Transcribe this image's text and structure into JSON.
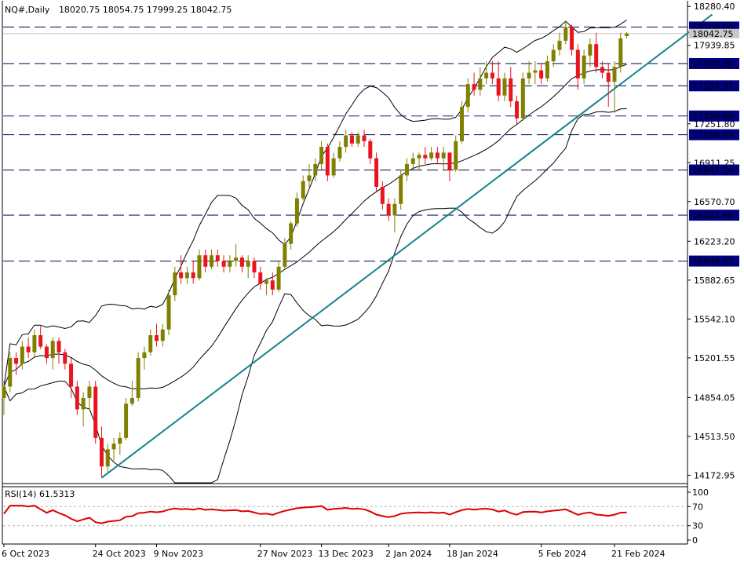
{
  "header": {
    "symbol": "NQ#,Daily",
    "ohlc": "18020.75 18054.75 17999.25 18042.75"
  },
  "rsi_panel": {
    "label": "RSI(14) 61.5313",
    "ticks": [
      "100",
      "70",
      "30",
      "0"
    ]
  },
  "chart_data": {
    "type": "candlestick",
    "symbol": "NQ#",
    "timeframe": "Daily",
    "last_ohlc": {
      "open": 18020.75,
      "high": 18054.75,
      "low": 17999.25,
      "close": 18042.75
    },
    "y_axis_ticks": [
      "18280.40",
      "17939.85",
      "17251.80",
      "16911.25",
      "16570.70",
      "16223.20",
      "15882.65",
      "15542.10",
      "15201.55",
      "14854.05",
      "14513.50",
      "14172.95"
    ],
    "current_price_label": "18042.75",
    "ylim": [
      14100,
      18330
    ],
    "x_axis_labels": [
      "6 Oct 2023",
      "24 Oct 2023",
      "9 Nov 2023",
      "27 Nov 2023",
      "13 Dec 2023",
      "2 Jan 2024",
      "18 Jan 2024",
      "5 Feb 2024",
      "21 Feb 2024"
    ],
    "horizontal_levels": [
      {
        "label": "18100.00",
        "value": 18100.0
      },
      {
        "label": "17780.00",
        "value": 17780.0
      },
      {
        "label": "17584.97",
        "value": 17584.97
      },
      {
        "label": "17320.60",
        "value": 17320.6
      },
      {
        "label": "17156.63",
        "value": 17156.63
      },
      {
        "label": "16847.54",
        "value": 16847.54
      },
      {
        "label": "16451.60",
        "value": 16451.6
      },
      {
        "label": "16049.53",
        "value": 16049.53
      }
    ],
    "trendline": {
      "from": {
        "bar": 16,
        "price": 14150
      },
      "to": {
        "bar": 116,
        "price": 18210
      }
    },
    "candles": [
      [
        14850,
        15000,
        14700,
        14950
      ],
      [
        14950,
        15250,
        14900,
        15200
      ],
      [
        15200,
        15250,
        15050,
        15150
      ],
      [
        15150,
        15350,
        15100,
        15300
      ],
      [
        15300,
        15380,
        15200,
        15250
      ],
      [
        15250,
        15450,
        15200,
        15400
      ],
      [
        15400,
        15480,
        15280,
        15300
      ],
      [
        15300,
        15320,
        15150,
        15200
      ],
      [
        15200,
        15380,
        15100,
        15350
      ],
      [
        15350,
        15380,
        15150,
        15250
      ],
      [
        15250,
        15280,
        15100,
        15150
      ],
      [
        15150,
        15200,
        14850,
        14950
      ],
      [
        14950,
        15000,
        14700,
        14750
      ],
      [
        14750,
        14900,
        14600,
        14850
      ],
      [
        14850,
        15000,
        14750,
        14950
      ],
      [
        14950,
        15000,
        14450,
        14500
      ],
      [
        14500,
        14600,
        14150,
        14250
      ],
      [
        14250,
        14450,
        14200,
        14400
      ],
      [
        14400,
        14500,
        14300,
        14450
      ],
      [
        14450,
        14550,
        14350,
        14500
      ],
      [
        14500,
        14850,
        14480,
        14800
      ],
      [
        14800,
        15000,
        14780,
        14850
      ],
      [
        14850,
        15250,
        14820,
        15200
      ],
      [
        15200,
        15300,
        15100,
        15250
      ],
      [
        15250,
        15450,
        15220,
        15400
      ],
      [
        15400,
        15500,
        15300,
        15350
      ],
      [
        15350,
        15500,
        15300,
        15450
      ],
      [
        15450,
        15800,
        15400,
        15750
      ],
      [
        15750,
        16000,
        15700,
        15950
      ],
      [
        15950,
        16100,
        15850,
        15900
      ],
      [
        15900,
        16000,
        15850,
        15950
      ],
      [
        15950,
        16050,
        15850,
        15900
      ],
      [
        15900,
        16150,
        15880,
        16100
      ],
      [
        16100,
        16150,
        15950,
        16000
      ],
      [
        16000,
        16150,
        15980,
        16100
      ],
      [
        16100,
        16150,
        16000,
        16050
      ],
      [
        16050,
        16100,
        15950,
        16000
      ],
      [
        16000,
        16100,
        15950,
        16050
      ],
      [
        16050,
        16200,
        16000,
        16080
      ],
      [
        16080,
        16100,
        15950,
        16000
      ],
      [
        16000,
        16100,
        15900,
        16050
      ],
      [
        16050,
        16080,
        15900,
        15950
      ],
      [
        15950,
        16000,
        15800,
        15850
      ],
      [
        15850,
        15900,
        15750,
        15880
      ],
      [
        15880,
        15950,
        15750,
        15800
      ],
      [
        15800,
        16050,
        15780,
        16000
      ],
      [
        16000,
        16250,
        15980,
        16200
      ],
      [
        16200,
        16400,
        16150,
        16380
      ],
      [
        16380,
        16650,
        16350,
        16600
      ],
      [
        16600,
        16800,
        16580,
        16750
      ],
      [
        16750,
        16900,
        16700,
        16800
      ],
      [
        16800,
        16950,
        16750,
        16900
      ],
      [
        16900,
        17100,
        16850,
        17050
      ],
      [
        17050,
        17080,
        16750,
        16800
      ],
      [
        16800,
        17000,
        16780,
        16950
      ],
      [
        16950,
        17100,
        16920,
        17050
      ],
      [
        17050,
        17200,
        17000,
        17150
      ],
      [
        17150,
        17180,
        17050,
        17080
      ],
      [
        17080,
        17180,
        17050,
        17150
      ],
      [
        17150,
        17200,
        17050,
        17100
      ],
      [
        17100,
        17120,
        16900,
        16950
      ],
      [
        16950,
        17000,
        16650,
        16700
      ],
      [
        16700,
        16750,
        16500,
        16550
      ],
      [
        16550,
        16600,
        16400,
        16450
      ],
      [
        16450,
        16600,
        16300,
        16550
      ],
      [
        16550,
        16850,
        16500,
        16800
      ],
      [
        16800,
        16950,
        16750,
        16900
      ],
      [
        16900,
        17000,
        16850,
        16950
      ],
      [
        16950,
        17000,
        16850,
        16980
      ],
      [
        16980,
        17050,
        16900,
        16950
      ],
      [
        16950,
        17050,
        16930,
        17000
      ],
      [
        17000,
        17050,
        16900,
        16950
      ],
      [
        16950,
        17050,
        16850,
        17000
      ],
      [
        17000,
        17000,
        16750,
        16850
      ],
      [
        16850,
        17150,
        16830,
        17100
      ],
      [
        17100,
        17450,
        17080,
        17400
      ],
      [
        17400,
        17650,
        17350,
        17600
      ],
      [
        17600,
        17700,
        17500,
        17550
      ],
      [
        17550,
        17750,
        17500,
        17650
      ],
      [
        17650,
        17800,
        17600,
        17700
      ],
      [
        17700,
        17800,
        17600,
        17650
      ],
      [
        17650,
        17800,
        17450,
        17500
      ],
      [
        17500,
        17700,
        17450,
        17650
      ],
      [
        17650,
        17750,
        17400,
        17450
      ],
      [
        17450,
        17500,
        17250,
        17300
      ],
      [
        17300,
        17700,
        17280,
        17650
      ],
      [
        17650,
        17800,
        17600,
        17700
      ],
      [
        17700,
        17800,
        17600,
        17720
      ],
      [
        17720,
        17780,
        17600,
        17650
      ],
      [
        17650,
        17850,
        17620,
        17800
      ],
      [
        17800,
        17950,
        17750,
        17900
      ],
      [
        17900,
        18050,
        17850,
        17980
      ],
      [
        17980,
        18150,
        17950,
        18100
      ],
      [
        18100,
        18120,
        17850,
        17900
      ],
      [
        17900,
        17950,
        17550,
        17650
      ],
      [
        17650,
        17900,
        17600,
        17850
      ],
      [
        17850,
        18000,
        17750,
        17950
      ],
      [
        17950,
        18050,
        17700,
        17750
      ],
      [
        17750,
        17800,
        17650,
        17700
      ],
      [
        17700,
        17780,
        17400,
        17620
      ],
      [
        17620,
        17800,
        17350,
        17750
      ],
      [
        17750,
        18050,
        17700,
        18000
      ],
      [
        18020.75,
        18054.75,
        17999.25,
        18042.75
      ]
    ],
    "candle_x_offset": 0,
    "colors": {
      "bull": "#808000",
      "bear": "#e8141e",
      "trendline": "#14848c",
      "level_line": "#1c2066",
      "label_bg": "#000080",
      "rsi_line": "#e00000"
    }
  }
}
